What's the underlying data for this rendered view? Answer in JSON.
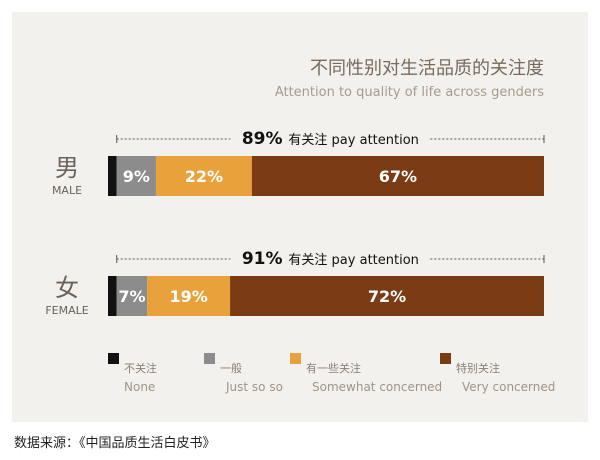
{
  "chart_data": {
    "type": "bar",
    "orientation": "horizontal-stacked-100",
    "title": "不同性别对生活品质的关注度",
    "subtitle": "Attention to quality of life across genders",
    "categories": [
      {
        "zh": "男",
        "en": "MALE"
      },
      {
        "zh": "女",
        "en": "FEMALE"
      }
    ],
    "series": [
      {
        "zh": "不关注",
        "en": "None",
        "color": "#111111",
        "values": [
          2,
          2
        ]
      },
      {
        "zh": "一般",
        "en": "Just so so",
        "color": "#8c8c8c",
        "values": [
          9,
          7
        ]
      },
      {
        "zh": "有一些关注",
        "en": "Somewhat concerned",
        "color": "#e9a23b",
        "values": [
          22,
          19
        ]
      },
      {
        "zh": "特别关注",
        "en": "Very concerned",
        "color": "#7a3b15",
        "values": [
          67,
          72
        ]
      }
    ],
    "data_labels": [
      [
        "",
        "9%",
        "22%",
        "67%"
      ],
      [
        "",
        "7%",
        "19%",
        "72%"
      ]
    ],
    "annotations": [
      {
        "value": "89%",
        "text": "有关注 pay attention"
      },
      {
        "value": "91%",
        "text": "有关注 pay attention"
      }
    ],
    "legend": {
      "position": "bottom"
    }
  },
  "source_text": "数据来源：《中国品质生活白皮书》"
}
